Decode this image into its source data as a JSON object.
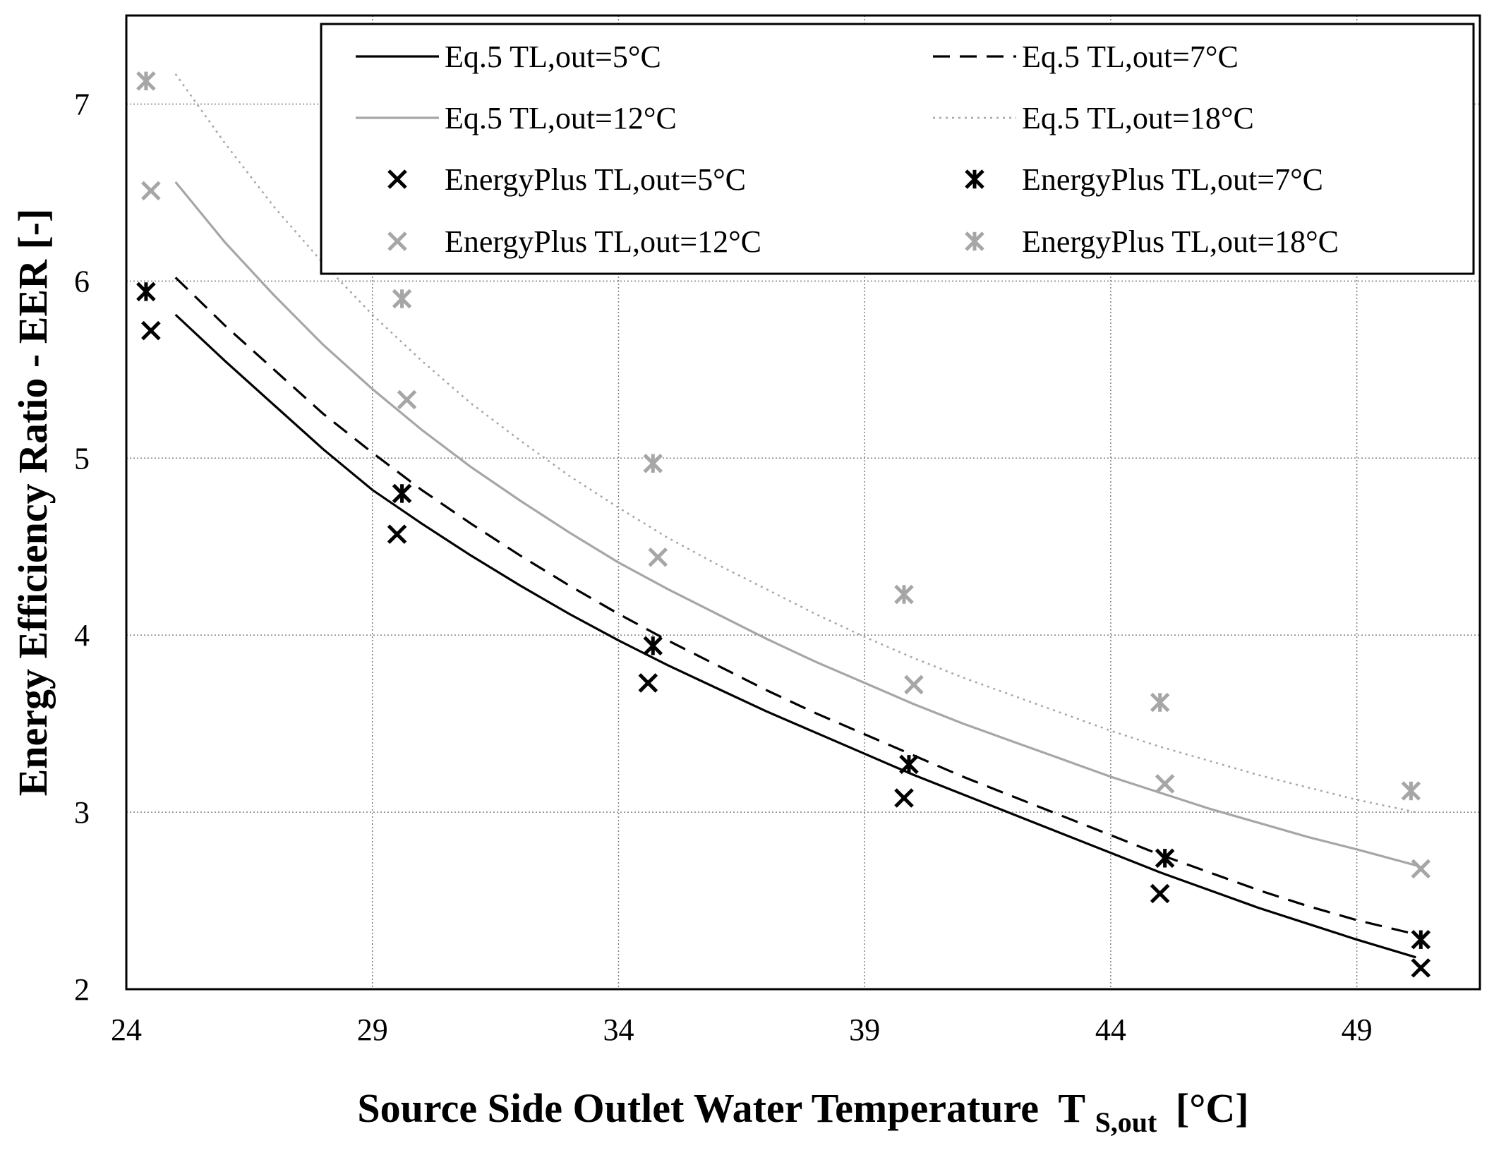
{
  "chart_data": {
    "type": "line",
    "title": "",
    "xlabel": "Source Side Outlet Water Temperature",
    "xlabel_symbol": "T",
    "xlabel_subscript": "S,out",
    "xlabel_unit": "[°C]",
    "ylabel": "Energy Efficiency Ratio - EER [-]",
    "xlim": [
      24,
      51.5
    ],
    "ylim": [
      2,
      7.5
    ],
    "xticks": [
      24,
      29,
      34,
      39,
      44,
      49
    ],
    "yticks": [
      2,
      3,
      4,
      5,
      6,
      7
    ],
    "xgrid": [
      24,
      29,
      34,
      39,
      44,
      49
    ],
    "ygrid": [
      2,
      3,
      4,
      5,
      6,
      7
    ],
    "grid": true,
    "legend_position": "top-right",
    "colors": {
      "black": "#000000",
      "gray": "#a6a6a6"
    },
    "line_series": [
      {
        "name": "Eq.5 TL,out=5°C",
        "color": "#000000",
        "dash": "solid",
        "x": [
          25,
          26,
          27,
          28,
          29,
          30,
          31,
          32,
          33,
          34,
          35,
          36,
          37,
          38,
          39,
          40,
          41,
          42,
          43,
          44,
          45,
          46,
          47,
          48,
          49,
          50.2
        ],
        "y": [
          5.81,
          5.55,
          5.3,
          5.05,
          4.82,
          4.63,
          4.45,
          4.28,
          4.12,
          3.97,
          3.83,
          3.7,
          3.57,
          3.45,
          3.33,
          3.21,
          3.1,
          2.99,
          2.88,
          2.77,
          2.66,
          2.56,
          2.46,
          2.37,
          2.28,
          2.18
        ]
      },
      {
        "name": "Eq.5 TL,out=7°C",
        "color": "#000000",
        "dash": "dashed",
        "x": [
          25,
          26,
          27,
          28,
          29,
          30,
          31,
          32,
          33,
          34,
          35,
          36,
          37,
          38,
          39,
          40,
          41,
          42,
          43,
          44,
          45,
          46,
          47,
          48,
          49,
          50.2
        ],
        "y": [
          6.02,
          5.75,
          5.5,
          5.25,
          5.03,
          4.82,
          4.63,
          4.45,
          4.28,
          4.12,
          3.97,
          3.83,
          3.69,
          3.56,
          3.44,
          3.32,
          3.2,
          3.09,
          2.98,
          2.87,
          2.76,
          2.66,
          2.56,
          2.47,
          2.39,
          2.31
        ]
      },
      {
        "name": "Eq.5 TL,out=12°C",
        "color": "#a6a6a6",
        "dash": "solid",
        "x": [
          25,
          26,
          27,
          28,
          29,
          30,
          31,
          32,
          33,
          34,
          35,
          36,
          37,
          38,
          39,
          40,
          41,
          42,
          43,
          44,
          45,
          46,
          47,
          48,
          49,
          50.2
        ],
        "y": [
          6.56,
          6.22,
          5.92,
          5.64,
          5.39,
          5.16,
          4.95,
          4.76,
          4.58,
          4.41,
          4.26,
          4.12,
          3.98,
          3.85,
          3.73,
          3.61,
          3.5,
          3.4,
          3.3,
          3.2,
          3.11,
          3.02,
          2.94,
          2.86,
          2.79,
          2.7
        ]
      },
      {
        "name": "Eq.5 TL,out=18°C",
        "color": "#a6a6a6",
        "dash": "dotted",
        "x": [
          25,
          26,
          27,
          28,
          29,
          30,
          31,
          32,
          33,
          34,
          35,
          36,
          37,
          38,
          39,
          40,
          41,
          42,
          43,
          44,
          45,
          46,
          47,
          48,
          49,
          50.2
        ],
        "y": [
          7.17,
          6.78,
          6.42,
          6.1,
          5.81,
          5.55,
          5.31,
          5.1,
          4.9,
          4.72,
          4.55,
          4.4,
          4.26,
          4.12,
          3.99,
          3.87,
          3.76,
          3.66,
          3.56,
          3.46,
          3.37,
          3.29,
          3.21,
          3.14,
          3.07,
          3.0
        ]
      }
    ],
    "scatter_series": [
      {
        "name": "EnergyPlus TL,out=5°C",
        "color": "#000000",
        "marker": "x",
        "x": [
          24.5,
          29.5,
          34.6,
          39.8,
          45.0,
          50.3
        ],
        "y": [
          5.72,
          4.57,
          3.73,
          3.08,
          2.54,
          2.12
        ]
      },
      {
        "name": "EnergyPlus TL,out=7°C",
        "color": "#000000",
        "marker": "star",
        "x": [
          24.4,
          29.6,
          34.7,
          39.9,
          45.1,
          50.3
        ],
        "y": [
          5.94,
          4.8,
          3.94,
          3.27,
          2.74,
          2.28
        ]
      },
      {
        "name": "EnergyPlus TL,out=12°C",
        "color": "#a6a6a6",
        "marker": "x",
        "x": [
          24.5,
          29.7,
          34.8,
          40.0,
          45.1,
          50.3
        ],
        "y": [
          6.51,
          5.33,
          4.44,
          3.72,
          3.16,
          2.68
        ]
      },
      {
        "name": "EnergyPlus TL,out=18°C",
        "color": "#a6a6a6",
        "marker": "star",
        "x": [
          24.4,
          29.6,
          34.7,
          39.8,
          45.0,
          50.1
        ],
        "y": [
          7.13,
          5.9,
          4.97,
          4.23,
          3.62,
          3.12
        ]
      }
    ],
    "legend": [
      {
        "label": "Eq.5 TL,out=5°C",
        "kind": "line",
        "color": "#000000",
        "dash": "solid"
      },
      {
        "label": "Eq.5 TL,out=7°C",
        "kind": "line",
        "color": "#000000",
        "dash": "dashed"
      },
      {
        "label": "Eq.5 TL,out=12°C",
        "kind": "line",
        "color": "#a6a6a6",
        "dash": "solid"
      },
      {
        "label": "Eq.5 TL,out=18°C",
        "kind": "line",
        "color": "#a6a6a6",
        "dash": "dotted"
      },
      {
        "label": "EnergyPlus TL,out=5°C",
        "kind": "marker",
        "color": "#000000",
        "marker": "x"
      },
      {
        "label": "EnergyPlus TL,out=7°C",
        "kind": "marker",
        "color": "#000000",
        "marker": "star"
      },
      {
        "label": "EnergyPlus TL,out=12°C",
        "kind": "marker",
        "color": "#a6a6a6",
        "marker": "x"
      },
      {
        "label": "EnergyPlus TL,out=18°C",
        "kind": "marker",
        "color": "#a6a6a6",
        "marker": "star"
      }
    ]
  }
}
